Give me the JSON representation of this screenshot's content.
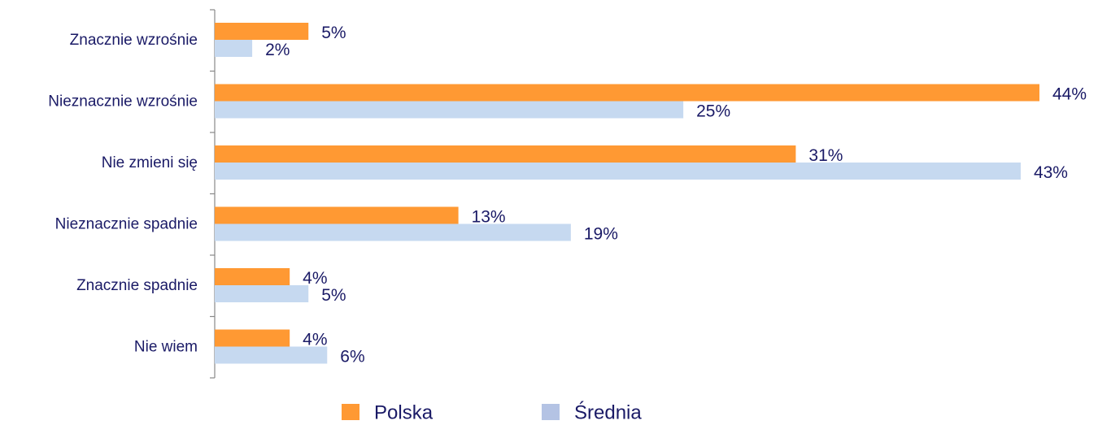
{
  "chart_data": {
    "type": "bar",
    "orientation": "horizontal",
    "categories": [
      "Znacznie wzrośnie",
      "Nieznacznie wzrośnie",
      "Nie zmieni się",
      "Nieznacznie spadnie",
      "Znacznie spadnie",
      "Nie wiem"
    ],
    "series": [
      {
        "name": "Polska",
        "color": "#ff9933",
        "values": [
          5,
          44,
          31,
          13,
          4,
          4
        ],
        "value_labels": [
          "5%",
          "44%",
          "31%",
          "13%",
          "4%",
          "4%"
        ]
      },
      {
        "name": "Średnia",
        "color": "#c6d9f0",
        "values": [
          2,
          25,
          43,
          19,
          5,
          6
        ],
        "value_labels": [
          "2%",
          "25%",
          "43%",
          "19%",
          "5%",
          "6%"
        ]
      }
    ]
  }
}
